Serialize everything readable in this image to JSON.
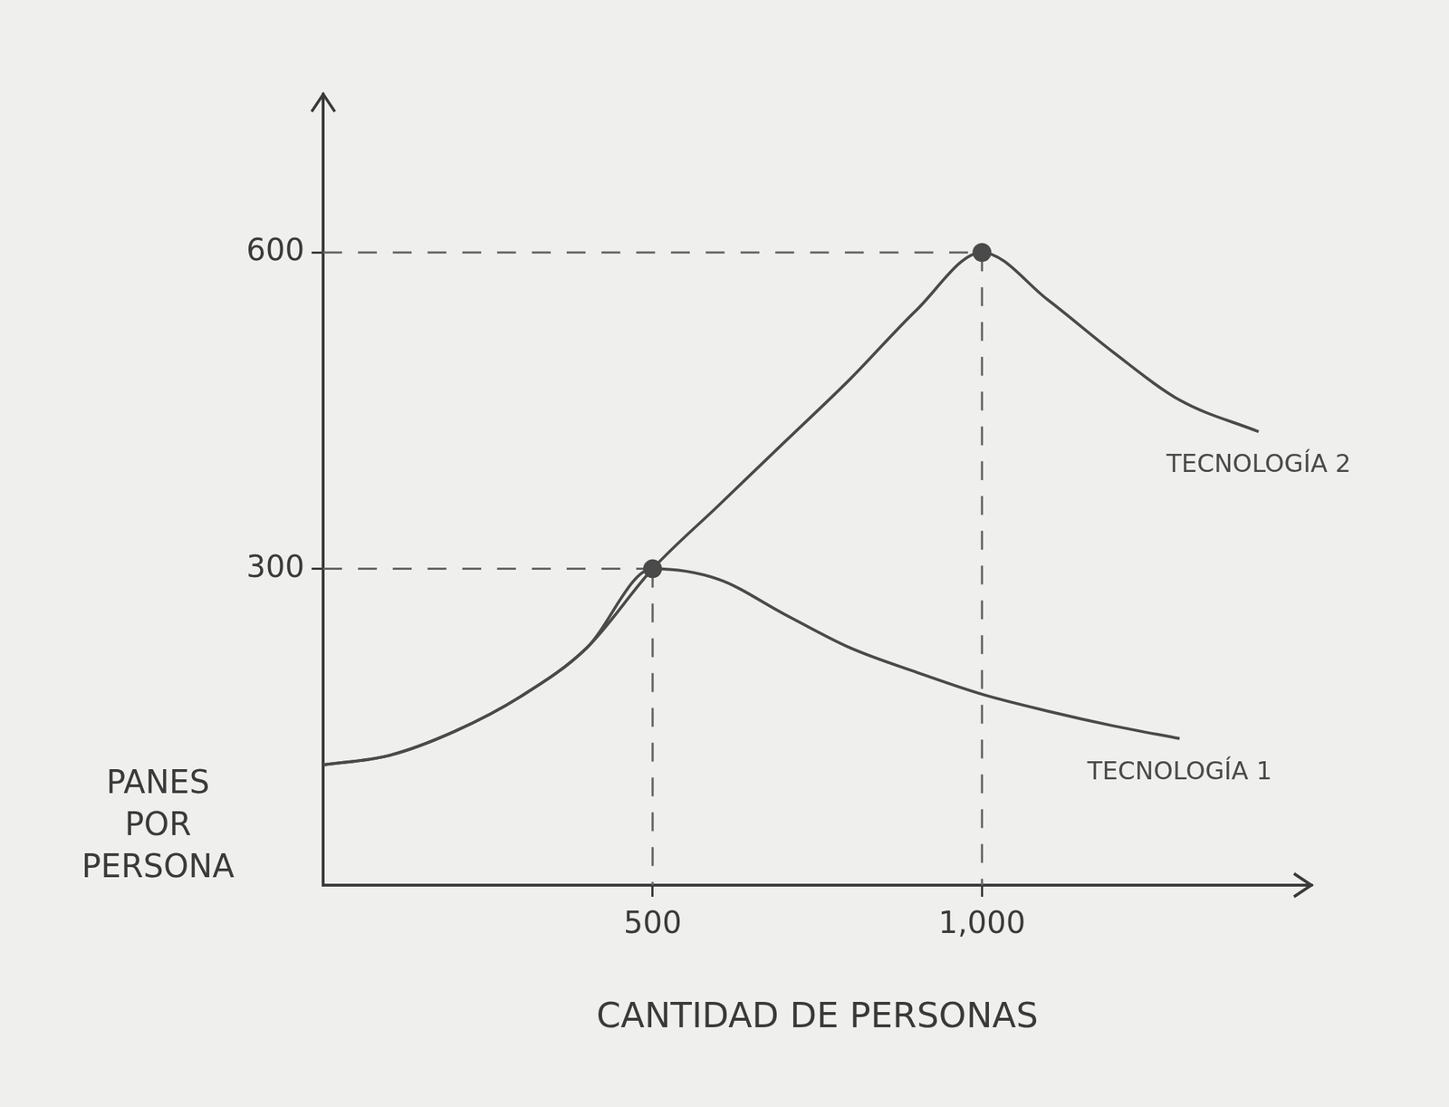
{
  "chart_data": {
    "type": "line",
    "x_label": "CANTIDAD DE PERSONAS",
    "y_label": "PANES POR PERSONA",
    "x": [
      0,
      100,
      200,
      300,
      400,
      500,
      600,
      700,
      800,
      900,
      1000,
      1100,
      1200,
      1300,
      1420
    ],
    "series": [
      {
        "name": "TECNOLOGÍA 1",
        "color": "#4a4a4a",
        "values": [
          114,
          123,
          146,
          179,
          225,
          300,
          290,
          257,
          225,
          202,
          181,
          165,
          151,
          139,
          null
        ]
      },
      {
        "name": "TECNOLOGÍA 2",
        "color": "#4a4a4a",
        "values": [
          114,
          123,
          146,
          179,
          225,
          300,
          360,
          420,
          480,
          545,
          600,
          555,
          505,
          460,
          430
        ]
      }
    ],
    "xlim": [
      0,
      1500
    ],
    "ylim": [
      0,
      750
    ],
    "xticks": [
      500,
      1000
    ],
    "yticks": [
      300,
      600
    ],
    "grid": false
  }
}
